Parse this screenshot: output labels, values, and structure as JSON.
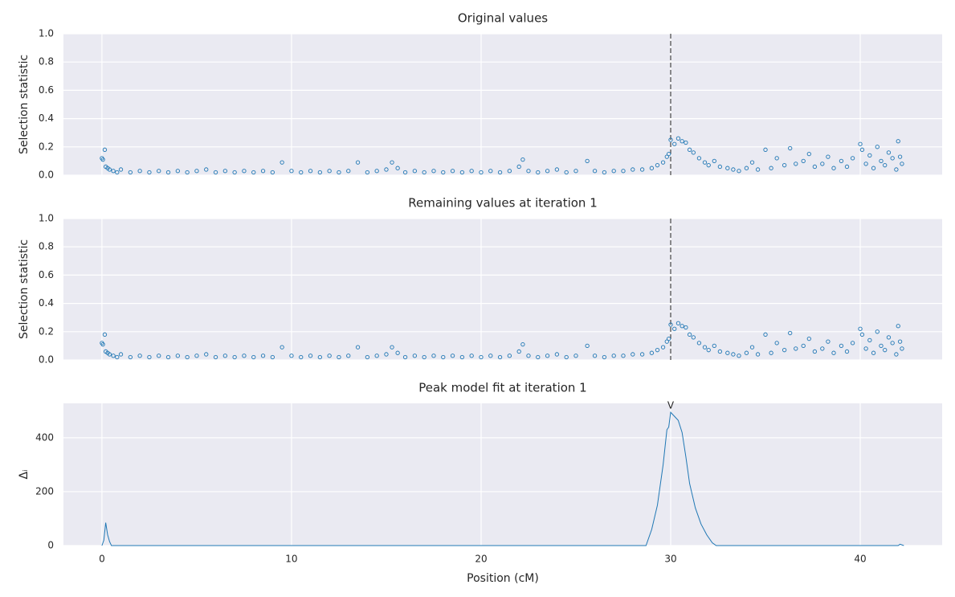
{
  "chart_data": [
    {
      "type": "scatter",
      "title": "Original values",
      "ylabel": "Selection statistic",
      "color": "#1f77b4",
      "grid": true,
      "vline": 30,
      "xlim": [
        -2.03,
        44.32
      ],
      "xticks": [
        0,
        10,
        20,
        30,
        40
      ],
      "ylim": [
        0,
        1
      ],
      "yticks": [
        {
          "value": 0,
          "label": "0.0"
        },
        0.2,
        0.4,
        0.6,
        0.8,
        {
          "value": 1,
          "label": "1.0"
        }
      ],
      "x": [
        0,
        0.05,
        0.15,
        0.2,
        0.3,
        0.4,
        0.6,
        0.8,
        1,
        1.5,
        2,
        2.5,
        3,
        3.5,
        4,
        4.5,
        5,
        5.5,
        6,
        6.5,
        7,
        7.5,
        8,
        8.5,
        9,
        9.5,
        10,
        10.5,
        11,
        11.5,
        12,
        12.5,
        13,
        13.5,
        14,
        14.5,
        15,
        15.3,
        15.6,
        16,
        16.5,
        17,
        17.5,
        18,
        18.5,
        19,
        19.5,
        20,
        20.5,
        21,
        21.5,
        22,
        22.2,
        22.5,
        23,
        23.5,
        24,
        24.5,
        25,
        25.6,
        26,
        26.5,
        27,
        27.5,
        28,
        28.5,
        29,
        29.3,
        29.6,
        29.8,
        29.9,
        30,
        30.2,
        30.4,
        30.6,
        30.8,
        31,
        31.2,
        31.5,
        31.8,
        32,
        32.3,
        32.6,
        33,
        33.3,
        33.6,
        34,
        34.3,
        34.6,
        35,
        35.3,
        35.6,
        36,
        36.3,
        36.6,
        37,
        37.3,
        37.6,
        38,
        38.3,
        38.6,
        39,
        39.3,
        39.6,
        40,
        40.1,
        40.3,
        40.5,
        40.7,
        40.9,
        41.1,
        41.3,
        41.5,
        41.7,
        41.9,
        42,
        42.1,
        42.2
      ],
      "values": [
        0.12,
        0.11,
        0.18,
        0.06,
        0.05,
        0.04,
        0.03,
        0.02,
        0.04,
        0.02,
        0.03,
        0.02,
        0.03,
        0.02,
        0.03,
        0.02,
        0.03,
        0.04,
        0.02,
        0.03,
        0.02,
        0.03,
        0.02,
        0.03,
        0.02,
        0.09,
        0.03,
        0.02,
        0.03,
        0.02,
        0.03,
        0.02,
        0.03,
        0.09,
        0.02,
        0.03,
        0.04,
        0.09,
        0.05,
        0.02,
        0.03,
        0.02,
        0.03,
        0.02,
        0.03,
        0.02,
        0.03,
        0.02,
        0.03,
        0.02,
        0.03,
        0.06,
        0.11,
        0.03,
        0.02,
        0.03,
        0.04,
        0.02,
        0.03,
        0.1,
        0.03,
        0.02,
        0.03,
        0.03,
        0.04,
        0.04,
        0.05,
        0.07,
        0.09,
        0.13,
        0.15,
        0.25,
        0.22,
        0.26,
        0.24,
        0.23,
        0.18,
        0.16,
        0.12,
        0.09,
        0.07,
        0.1,
        0.06,
        0.05,
        0.04,
        0.03,
        0.05,
        0.09,
        0.04,
        0.18,
        0.05,
        0.12,
        0.07,
        0.19,
        0.08,
        0.1,
        0.15,
        0.06,
        0.08,
        0.13,
        0.05,
        0.1,
        0.06,
        0.12,
        0.22,
        0.18,
        0.08,
        0.14,
        0.05,
        0.2,
        0.1,
        0.07,
        0.16,
        0.12,
        0.04,
        0.24,
        0.13,
        0.08
      ]
    },
    {
      "type": "scatter",
      "title": "Remaining values at iteration 1",
      "ylabel": "Selection statistic",
      "color": "#1f77b4",
      "grid": true,
      "vline": 30,
      "xlim": [
        -2.03,
        44.32
      ],
      "xticks": [
        0,
        10,
        20,
        30,
        40
      ],
      "ylim": [
        0,
        1
      ],
      "yticks": [
        {
          "value": 0,
          "label": "0.0"
        },
        0.2,
        0.4,
        0.6,
        0.8,
        {
          "value": 1,
          "label": "1.0"
        }
      ],
      "x": [
        0,
        0.05,
        0.15,
        0.2,
        0.3,
        0.4,
        0.6,
        0.8,
        1,
        1.5,
        2,
        2.5,
        3,
        3.5,
        4,
        4.5,
        5,
        5.5,
        6,
        6.5,
        7,
        7.5,
        8,
        8.5,
        9,
        9.5,
        10,
        10.5,
        11,
        11.5,
        12,
        12.5,
        13,
        13.5,
        14,
        14.5,
        15,
        15.3,
        15.6,
        16,
        16.5,
        17,
        17.5,
        18,
        18.5,
        19,
        19.5,
        20,
        20.5,
        21,
        21.5,
        22,
        22.2,
        22.5,
        23,
        23.5,
        24,
        24.5,
        25,
        25.6,
        26,
        26.5,
        27,
        27.5,
        28,
        28.5,
        29,
        29.3,
        29.6,
        29.8,
        29.9,
        30,
        30.2,
        30.4,
        30.6,
        30.8,
        31,
        31.2,
        31.5,
        31.8,
        32,
        32.3,
        32.6,
        33,
        33.3,
        33.6,
        34,
        34.3,
        34.6,
        35,
        35.3,
        35.6,
        36,
        36.3,
        36.6,
        37,
        37.3,
        37.6,
        38,
        38.3,
        38.6,
        39,
        39.3,
        39.6,
        40,
        40.1,
        40.3,
        40.5,
        40.7,
        40.9,
        41.1,
        41.3,
        41.5,
        41.7,
        41.9,
        42,
        42.1,
        42.2
      ],
      "values": [
        0.12,
        0.11,
        0.18,
        0.06,
        0.05,
        0.04,
        0.03,
        0.02,
        0.04,
        0.02,
        0.03,
        0.02,
        0.03,
        0.02,
        0.03,
        0.02,
        0.03,
        0.04,
        0.02,
        0.03,
        0.02,
        0.03,
        0.02,
        0.03,
        0.02,
        0.09,
        0.03,
        0.02,
        0.03,
        0.02,
        0.03,
        0.02,
        0.03,
        0.09,
        0.02,
        0.03,
        0.04,
        0.09,
        0.05,
        0.02,
        0.03,
        0.02,
        0.03,
        0.02,
        0.03,
        0.02,
        0.03,
        0.02,
        0.03,
        0.02,
        0.03,
        0.06,
        0.11,
        0.03,
        0.02,
        0.03,
        0.04,
        0.02,
        0.03,
        0.1,
        0.03,
        0.02,
        0.03,
        0.03,
        0.04,
        0.04,
        0.05,
        0.07,
        0.09,
        0.13,
        0.15,
        0.25,
        0.22,
        0.26,
        0.24,
        0.23,
        0.18,
        0.16,
        0.12,
        0.09,
        0.07,
        0.1,
        0.06,
        0.05,
        0.04,
        0.03,
        0.05,
        0.09,
        0.04,
        0.18,
        0.05,
        0.12,
        0.07,
        0.19,
        0.08,
        0.1,
        0.15,
        0.06,
        0.08,
        0.13,
        0.05,
        0.1,
        0.06,
        0.12,
        0.22,
        0.18,
        0.08,
        0.14,
        0.05,
        0.2,
        0.1,
        0.07,
        0.16,
        0.12,
        0.04,
        0.24,
        0.13,
        0.08
      ]
    },
    {
      "type": "line",
      "title": "Peak model fit at iteration 1",
      "ylabel": "Δᵢ",
      "xlabel": "Position (cM)",
      "color": "#1f77b4",
      "grid": true,
      "annotation": {
        "text": "V",
        "x": 30
      },
      "xlim": [
        -2.03,
        44.32
      ],
      "xticks": [
        0,
        10,
        20,
        30,
        40
      ],
      "ylim": [
        0,
        528
      ],
      "yticks": [
        0,
        200,
        400
      ],
      "x": [
        0,
        0.1,
        0.2,
        0.3,
        0.4,
        0.5,
        5,
        10,
        15,
        20,
        25,
        28.7,
        29,
        29.3,
        29.6,
        29.8,
        29.9,
        30,
        30.2,
        30.4,
        30.6,
        30.8,
        31,
        31.3,
        31.6,
        31.9,
        32.2,
        32.4,
        36,
        42,
        42.1,
        42.3
      ],
      "values": [
        0,
        20,
        85,
        40,
        15,
        0,
        0,
        0,
        0,
        0,
        0,
        0,
        60,
        150,
        300,
        430,
        440,
        495,
        480,
        465,
        420,
        330,
        230,
        140,
        80,
        40,
        10,
        0,
        0,
        0,
        5,
        0
      ]
    }
  ]
}
